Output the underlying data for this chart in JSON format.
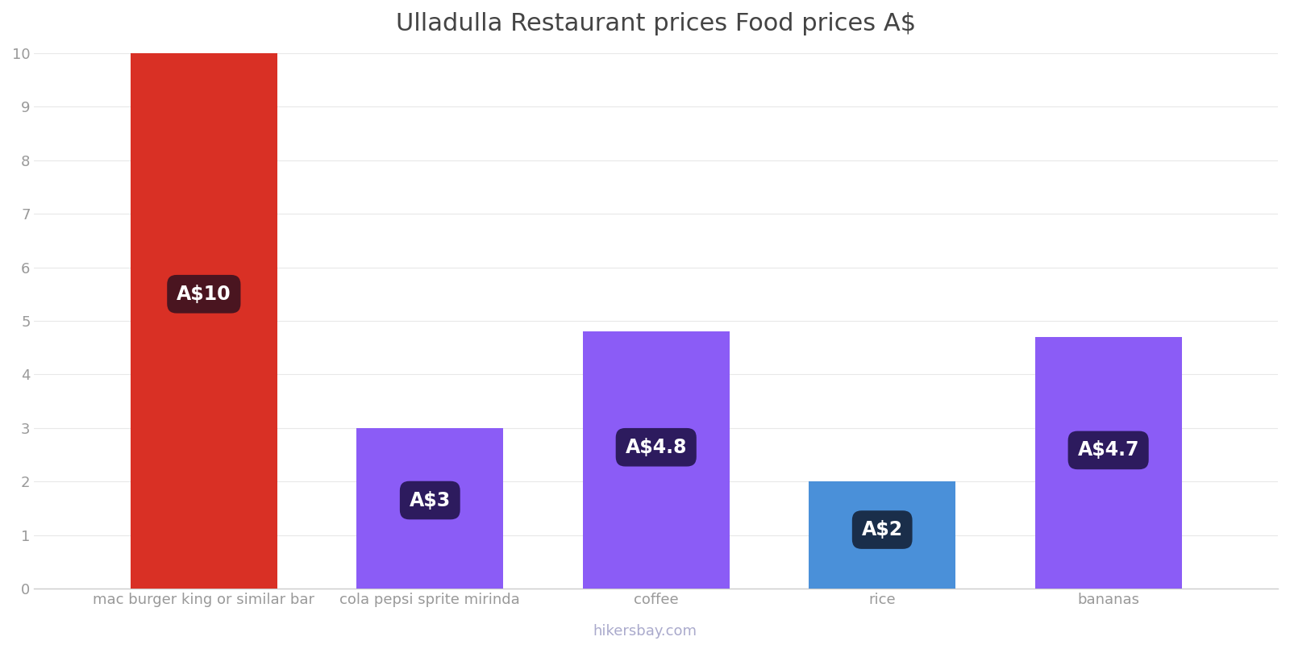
{
  "title": "Ulladulla Restaurant prices Food prices A$",
  "categories": [
    "mac burger king or similar bar",
    "cola pepsi sprite mirinda",
    "coffee",
    "rice",
    "bananas"
  ],
  "values": [
    10,
    3,
    4.8,
    2,
    4.7
  ],
  "bar_colors": [
    "#d93025",
    "#8b5cf6",
    "#8b5cf6",
    "#4a90d9",
    "#8b5cf6"
  ],
  "labels": [
    "A$10",
    "A$3",
    "A$4.8",
    "A$2",
    "A$4.7"
  ],
  "label_bg_colors": [
    "#4a1520",
    "#2d1b5e",
    "#2d1b5e",
    "#1a2e4a",
    "#2d1b5e"
  ],
  "ylim": [
    0,
    10
  ],
  "yticks": [
    0,
    1,
    2,
    3,
    4,
    5,
    6,
    7,
    8,
    9,
    10
  ],
  "title_fontsize": 22,
  "tick_fontsize": 13,
  "label_fontsize": 17,
  "watermark": "hikersbay.com",
  "background_color": "#ffffff",
  "grid_color": "#e8e8e8"
}
